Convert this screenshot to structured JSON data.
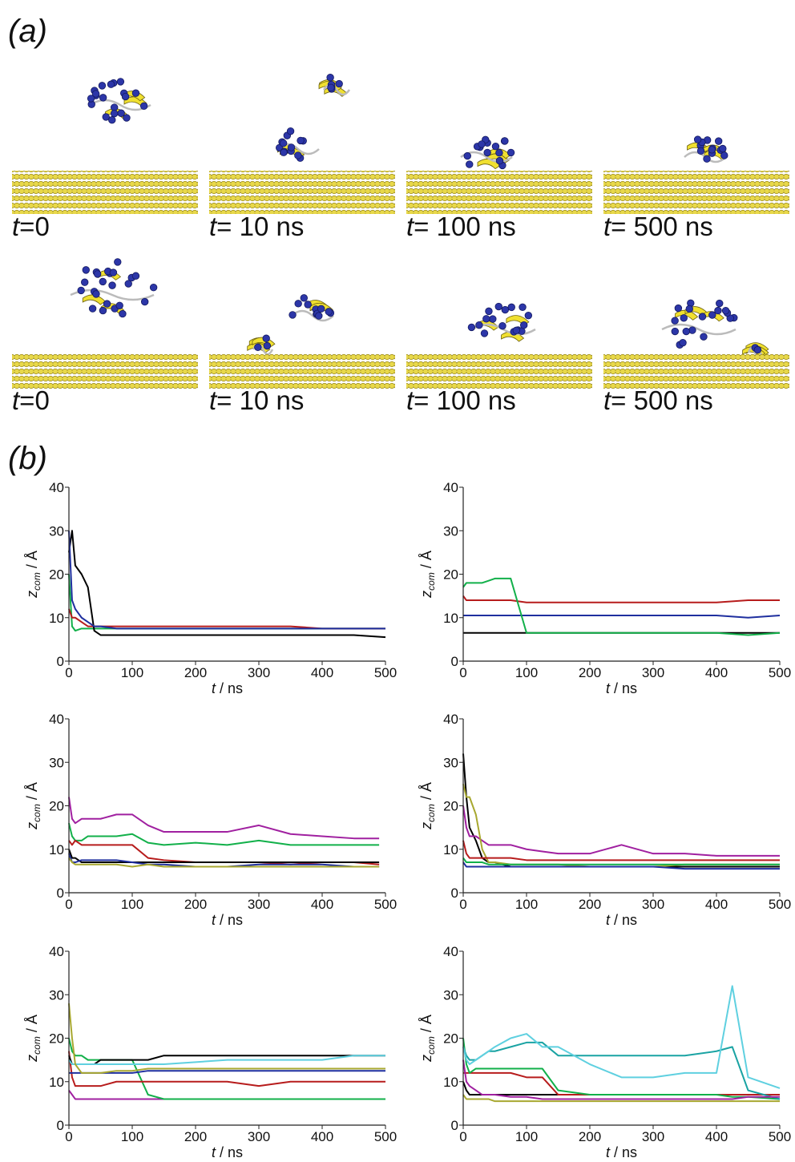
{
  "figure_labels": {
    "a": "(a)",
    "b": "(b)"
  },
  "snapshots": {
    "rows": [
      [
        {
          "var": "t",
          "rest": "=0"
        },
        {
          "var": "t",
          "rest": "= 10 ns"
        },
        {
          "var": "t",
          "rest": "= 100 ns"
        },
        {
          "var": "t",
          "rest": "= 500 ns"
        }
      ],
      [
        {
          "var": "t",
          "rest": "=0"
        },
        {
          "var": "t",
          "rest": "= 10 ns"
        },
        {
          "var": "t",
          "rest": "= 100 ns"
        },
        {
          "var": "t",
          "rest": "= 500 ns"
        }
      ]
    ]
  },
  "chart_data": [
    {
      "type": "line",
      "xlabel": {
        "main": "t",
        "unit": " / ns"
      },
      "ylabel": {
        "main": "z",
        "sub": "com",
        "unit": " / Å"
      },
      "xlim": [
        0,
        500
      ],
      "ylim": [
        0,
        40
      ],
      "xticks": [
        0,
        100,
        200,
        300,
        400,
        500
      ],
      "yticks": [
        0,
        10,
        20,
        30,
        40
      ],
      "x": [
        0,
        5,
        10,
        20,
        30,
        40,
        50,
        75,
        100,
        125,
        150,
        200,
        250,
        300,
        350,
        400,
        450,
        500
      ],
      "series": [
        {
          "color": "#12b04a",
          "values": [
            20,
            8,
            7,
            7.5,
            7.5,
            7.5,
            7.5,
            7.5,
            7.5,
            7.5,
            7.5,
            7.5,
            7.5,
            7.5,
            7.5,
            7.5,
            7.5,
            7.5
          ]
        },
        {
          "color": "#b71c1c",
          "values": [
            12,
            10,
            10,
            9,
            8,
            8,
            8,
            8,
            8,
            8,
            8,
            8,
            8,
            8,
            8,
            7.5,
            7.5,
            7.5
          ]
        },
        {
          "color": "#000000",
          "values": [
            25,
            30,
            22,
            20,
            17,
            7,
            6,
            6,
            6,
            6,
            6,
            6,
            6,
            6,
            6,
            6,
            6,
            5.5
          ]
        },
        {
          "color": "#1f2f9f",
          "values": [
            30,
            14,
            12,
            10,
            9,
            8,
            8,
            7.5,
            7.5,
            7.5,
            7.5,
            7.5,
            7.5,
            7.5,
            7.5,
            7.5,
            7.5,
            7.5
          ]
        }
      ]
    },
    {
      "type": "line",
      "xlabel": {
        "main": "t",
        "unit": " / ns"
      },
      "ylabel": {
        "main": "z",
        "sub": "com",
        "unit": " / Å"
      },
      "xlim": [
        0,
        500
      ],
      "ylim": [
        0,
        40
      ],
      "xticks": [
        0,
        100,
        200,
        300,
        400,
        500
      ],
      "yticks": [
        0,
        10,
        20,
        30,
        40
      ],
      "x": [
        0,
        5,
        10,
        20,
        30,
        40,
        50,
        75,
        100,
        125,
        150,
        200,
        250,
        300,
        350,
        400,
        450,
        500
      ],
      "series": [
        {
          "color": "#000000",
          "values": [
            6.5,
            6.5,
            6.5,
            6.5,
            6.5,
            6.5,
            6.5,
            6.5,
            6.5,
            6.5,
            6.5,
            6.5,
            6.5,
            6.5,
            6.5,
            6.5,
            6.5,
            6.5
          ]
        },
        {
          "color": "#b71c1c",
          "values": [
            15,
            14,
            14,
            14,
            14,
            14,
            14,
            14,
            13.5,
            13.5,
            13.5,
            13.5,
            13.5,
            13.5,
            13.5,
            13.5,
            14,
            14
          ]
        },
        {
          "color": "#1f2f9f",
          "values": [
            10.5,
            10.5,
            10.5,
            10.5,
            10.5,
            10.5,
            10.5,
            10.5,
            10.5,
            10.5,
            10.5,
            10.5,
            10.5,
            10.5,
            10.5,
            10.5,
            10,
            10.5
          ]
        },
        {
          "color": "#12b04a",
          "values": [
            17,
            18,
            18,
            18,
            18,
            18.5,
            19,
            19,
            6.5,
            6.5,
            6.5,
            6.5,
            6.5,
            6.5,
            6.5,
            6.5,
            6,
            6.5
          ]
        }
      ]
    },
    {
      "type": "line",
      "xlabel": {
        "main": "t",
        "unit": " / ns"
      },
      "ylabel": {
        "main": "z",
        "sub": "com",
        "unit": " / Å"
      },
      "xlim": [
        0,
        500
      ],
      "ylim": [
        0,
        40
      ],
      "xticks": [
        0,
        100,
        200,
        300,
        400,
        500
      ],
      "yticks": [
        0,
        10,
        20,
        30,
        40
      ],
      "x": [
        0,
        5,
        10,
        20,
        30,
        40,
        50,
        75,
        100,
        125,
        150,
        200,
        250,
        300,
        350,
        400,
        450,
        490
      ],
      "series": [
        {
          "color": "#a020a0",
          "values": [
            22,
            17,
            16,
            17,
            17,
            17,
            17,
            18,
            18,
            15.5,
            14,
            14,
            14,
            15.5,
            13.5,
            13,
            12.5,
            12.5
          ]
        },
        {
          "color": "#12b04a",
          "values": [
            16,
            13,
            12,
            12,
            13,
            13,
            13,
            13,
            13.5,
            11.5,
            11,
            11.5,
            11,
            12,
            11,
            11,
            11,
            11
          ]
        },
        {
          "color": "#b71c1c",
          "values": [
            12,
            11,
            12,
            11,
            11,
            11,
            11,
            11,
            11,
            8,
            7.5,
            7,
            7,
            7,
            6.5,
            7,
            7,
            6.5
          ]
        },
        {
          "color": "#000000",
          "values": [
            10,
            8,
            8,
            7,
            7,
            7,
            7,
            7,
            7,
            7,
            7,
            7,
            7,
            7,
            7,
            7,
            7,
            7
          ]
        },
        {
          "color": "#1f2f9f",
          "values": [
            9,
            7,
            7,
            7.5,
            7.5,
            7.5,
            7.5,
            7.5,
            7,
            6.5,
            6.5,
            6,
            6,
            6.5,
            6.5,
            6.5,
            6,
            6
          ]
        },
        {
          "color": "#a8a830",
          "values": [
            8,
            7,
            6.5,
            6.5,
            6.5,
            6.5,
            6.5,
            6.5,
            6,
            6.5,
            6,
            6,
            6,
            6,
            6,
            6,
            6,
            6
          ]
        }
      ]
    },
    {
      "type": "line",
      "xlabel": {
        "main": "t",
        "unit": " / ns"
      },
      "ylabel": {
        "main": "z",
        "sub": "com",
        "unit": " / Å"
      },
      "xlim": [
        0,
        500
      ],
      "ylim": [
        0,
        40
      ],
      "xticks": [
        0,
        100,
        200,
        300,
        400,
        500
      ],
      "yticks": [
        0,
        10,
        20,
        30,
        40
      ],
      "x": [
        0,
        5,
        10,
        20,
        30,
        40,
        50,
        75,
        100,
        125,
        150,
        200,
        250,
        300,
        350,
        400,
        450,
        500
      ],
      "series": [
        {
          "color": "#000000",
          "values": [
            32,
            22,
            15,
            12,
            8,
            7,
            7,
            6,
            6,
            6,
            6,
            6,
            6,
            6,
            6,
            6,
            6,
            6
          ]
        },
        {
          "color": "#a020a0",
          "values": [
            20,
            15,
            13,
            13,
            12,
            11,
            11,
            11,
            10,
            9.5,
            9,
            9,
            11,
            9,
            9,
            8.5,
            8.5,
            8.5
          ]
        },
        {
          "color": "#a8a830",
          "values": [
            25,
            22,
            22,
            18,
            10,
            7,
            7,
            6.5,
            6.5,
            6.5,
            6.5,
            6,
            6,
            6,
            6.5,
            6.5,
            6.5,
            6.5
          ]
        },
        {
          "color": "#b71c1c",
          "values": [
            12,
            9,
            8,
            8,
            8,
            8,
            8,
            8,
            7.5,
            7.5,
            7.5,
            7.5,
            7.5,
            7.5,
            7.5,
            7.5,
            7.5,
            7.5
          ]
        },
        {
          "color": "#12b04a",
          "values": [
            8,
            7,
            7,
            7,
            7,
            6.5,
            6.5,
            6.5,
            6.5,
            6.5,
            6.5,
            6.5,
            6.5,
            6.5,
            6.5,
            6.5,
            6.5,
            6.5
          ]
        },
        {
          "color": "#1f2f9f",
          "values": [
            7,
            6,
            6,
            6,
            6,
            6,
            6,
            6,
            6,
            6,
            6,
            6,
            6,
            6,
            5.5,
            5.5,
            5.5,
            5.5
          ]
        }
      ]
    },
    {
      "type": "line",
      "xlabel": {
        "main": "t",
        "unit": " / ns"
      },
      "ylabel": {
        "main": "z",
        "sub": "com",
        "unit": " / Å"
      },
      "xlim": [
        0,
        500
      ],
      "ylim": [
        0,
        40
      ],
      "xticks": [
        0,
        100,
        200,
        300,
        400,
        500
      ],
      "yticks": [
        0,
        10,
        20,
        30,
        40
      ],
      "x": [
        0,
        5,
        10,
        20,
        30,
        40,
        50,
        75,
        100,
        125,
        150,
        200,
        250,
        300,
        350,
        400,
        450,
        500
      ],
      "series": [
        {
          "color": "#a020a0",
          "values": [
            8,
            7,
            6,
            6,
            6,
            6,
            6,
            6,
            6,
            6,
            6,
            6,
            6,
            6,
            6,
            6,
            6,
            6
          ]
        },
        {
          "color": "#12b04a",
          "values": [
            20,
            17,
            16,
            16,
            15,
            15,
            15,
            15,
            15,
            7,
            6,
            6,
            6,
            6,
            6,
            6,
            6,
            6
          ]
        },
        {
          "color": "#b71c1c",
          "values": [
            17,
            11,
            9,
            9,
            9,
            9,
            9,
            10,
            10,
            10,
            10,
            10,
            10,
            9,
            10,
            10,
            10,
            10
          ]
        },
        {
          "color": "#1f2f9f",
          "values": [
            12,
            12,
            12,
            12,
            12,
            12,
            12,
            12,
            12,
            12.5,
            12.5,
            12.5,
            12.5,
            12.5,
            12.5,
            12.5,
            12.5,
            12.5
          ]
        },
        {
          "color": "#000000",
          "values": [
            16,
            14,
            14,
            14,
            14,
            14,
            15,
            15,
            15,
            15,
            16,
            16,
            16,
            16,
            16,
            16,
            16,
            16
          ]
        },
        {
          "color": "#5fd0e0",
          "values": [
            15,
            14,
            14,
            14,
            14,
            14,
            14,
            14,
            14,
            14,
            14,
            14.5,
            15,
            15,
            15,
            15,
            16,
            16
          ]
        },
        {
          "color": "#a8a830",
          "values": [
            28,
            20,
            14,
            12,
            12,
            12,
            12,
            12.5,
            12.5,
            13,
            13,
            13,
            13,
            13,
            13,
            13,
            13,
            13
          ]
        }
      ]
    },
    {
      "type": "line",
      "xlabel": {
        "main": "t",
        "unit": " / ns"
      },
      "ylabel": {
        "main": "z",
        "sub": "com",
        "unit": " / Å"
      },
      "xlim": [
        0,
        500
      ],
      "ylim": [
        0,
        40
      ],
      "xticks": [
        0,
        100,
        200,
        300,
        400,
        500
      ],
      "yticks": [
        0,
        10,
        20,
        30,
        40
      ],
      "x": [
        0,
        5,
        10,
        20,
        30,
        40,
        50,
        75,
        100,
        125,
        150,
        200,
        250,
        300,
        350,
        400,
        425,
        450,
        500
      ],
      "series": [
        {
          "color": "#a8a830",
          "values": [
            7,
            6,
            6,
            6,
            6,
            6,
            5.5,
            5.5,
            5.5,
            5.5,
            5.5,
            5.5,
            5.5,
            5.5,
            5.5,
            5.5,
            5.5,
            5.5,
            5.5
          ]
        },
        {
          "color": "#000000",
          "values": [
            10,
            8,
            7,
            7,
            7,
            7,
            7,
            7,
            7,
            7,
            7,
            7,
            7,
            7,
            7,
            7,
            7,
            7,
            7
          ]
        },
        {
          "color": "#b71c1c",
          "values": [
            12,
            12,
            12,
            12,
            12,
            12,
            12,
            12,
            11,
            11,
            7,
            7,
            7,
            7,
            7,
            7,
            7,
            7,
            7
          ]
        },
        {
          "color": "#12b04a",
          "values": [
            20,
            14,
            12,
            13,
            13,
            13,
            13,
            13,
            13,
            13,
            8,
            7,
            7,
            7,
            7,
            7,
            6.5,
            6.5,
            6
          ]
        },
        {
          "color": "#1aa3a3",
          "values": [
            18,
            16,
            15,
            15,
            16,
            17,
            17,
            18,
            19,
            19,
            16,
            16,
            16,
            16,
            16,
            17,
            18,
            8,
            6
          ]
        },
        {
          "color": "#5fd0e0",
          "values": [
            18,
            15,
            14,
            15,
            16,
            17,
            18,
            20,
            21,
            18,
            18,
            14,
            11,
            11,
            12,
            12,
            32,
            11,
            8.5
          ]
        },
        {
          "color": "#a020a0",
          "values": [
            15,
            10,
            9,
            8,
            7,
            7,
            7,
            6.5,
            6.5,
            6,
            6,
            6,
            6,
            6,
            6,
            6,
            6,
            6.5,
            6.5
          ]
        }
      ]
    }
  ]
}
